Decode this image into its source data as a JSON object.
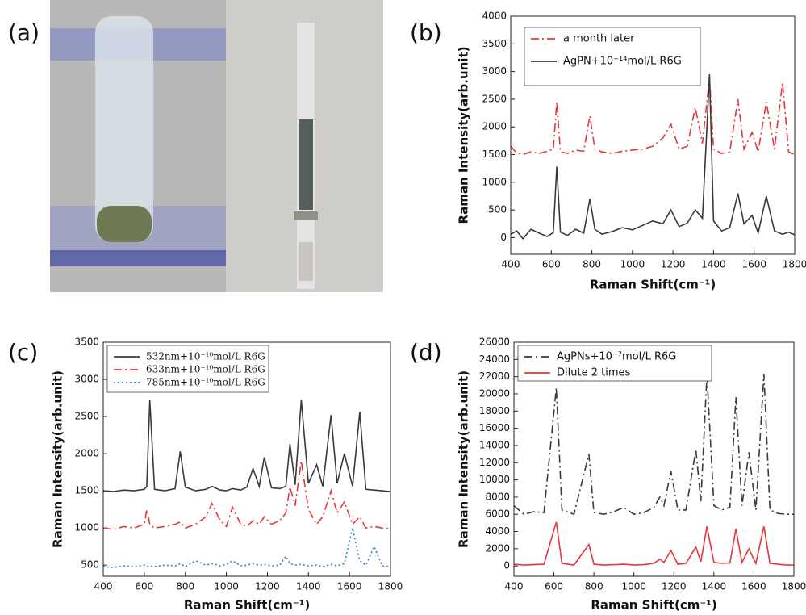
{
  "photo_panel": {
    "label": "(a)"
  },
  "chart_data": [
    {
      "type": "line",
      "label": "(b)",
      "legend": "upper left",
      "xlabel": "Raman Shift(cm⁻¹)",
      "ylabel": "Raman Intensity(arb.unit)",
      "xlim": [
        400,
        1800
      ],
      "xticks": [
        400,
        600,
        800,
        1000,
        1200,
        1400,
        1600,
        1800
      ],
      "ylim": [
        -300,
        4000
      ],
      "yticks": [
        0,
        500,
        1000,
        1500,
        2000,
        2500,
        3000,
        3500,
        4000
      ],
      "x": [
        400,
        430,
        460,
        500,
        540,
        580,
        610,
        627,
        645,
        680,
        720,
        760,
        790,
        815,
        850,
        900,
        950,
        1000,
        1050,
        1100,
        1150,
        1190,
        1230,
        1270,
        1310,
        1345,
        1380,
        1400,
        1440,
        1480,
        1520,
        1550,
        1590,
        1620,
        1660,
        1700,
        1740,
        1770,
        1800
      ],
      "series": [
        {
          "name": "a month later",
          "color": "#e8353a",
          "linestyle": "dashdot",
          "values": [
            1650,
            1530,
            1500,
            1550,
            1520,
            1560,
            1600,
            2450,
            1550,
            1520,
            1580,
            1560,
            2200,
            1600,
            1550,
            1520,
            1560,
            1580,
            1600,
            1650,
            1800,
            2050,
            1600,
            1650,
            2350,
            1700,
            2900,
            1600,
            1520,
            1550,
            2500,
            1600,
            1900,
            1550,
            2450,
            1600,
            2800,
            1550,
            1500
          ]
        },
        {
          "name": "AgPN+10⁻¹⁴mol/L R6G",
          "color": "#3a3a3a",
          "linestyle": "solid",
          "values": [
            60,
            120,
            -20,
            150,
            80,
            20,
            90,
            1280,
            100,
            40,
            150,
            80,
            700,
            150,
            60,
            110,
            180,
            140,
            220,
            300,
            250,
            500,
            200,
            260,
            500,
            350,
            2950,
            300,
            120,
            180,
            800,
            250,
            400,
            80,
            750,
            120,
            60,
            100,
            50
          ]
        }
      ]
    },
    {
      "type": "line",
      "label": "(c)",
      "legend": "upper left",
      "xlabel": "Raman Shift(cm⁻¹)",
      "ylabel": "Raman Intensity(arb.unit)",
      "xlim": [
        400,
        1800
      ],
      "xticks": [
        400,
        600,
        800,
        1000,
        1200,
        1400,
        1600,
        1800
      ],
      "ylim": [
        350,
        3500
      ],
      "yticks": [
        500,
        1000,
        1500,
        2000,
        2500,
        3000,
        3500
      ],
      "x": [
        400,
        450,
        500,
        550,
        600,
        612,
        627,
        650,
        700,
        750,
        775,
        800,
        850,
        900,
        930,
        970,
        1000,
        1030,
        1070,
        1100,
        1130,
        1160,
        1185,
        1220,
        1260,
        1290,
        1310,
        1335,
        1365,
        1400,
        1440,
        1470,
        1510,
        1540,
        1575,
        1615,
        1650,
        1680,
        1720,
        1760,
        1800
      ],
      "series": [
        {
          "name": "532nm+10⁻¹⁰mol/L R6G",
          "color": "#3a3a3a",
          "linestyle": "solid",
          "values": [
            1500,
            1490,
            1510,
            1500,
            1520,
            1560,
            2720,
            1520,
            1500,
            1530,
            2030,
            1550,
            1500,
            1520,
            1560,
            1510,
            1500,
            1530,
            1510,
            1550,
            1800,
            1560,
            1950,
            1540,
            1530,
            1560,
            2130,
            1580,
            2720,
            1600,
            1850,
            1560,
            2520,
            1600,
            2000,
            1560,
            2560,
            1520,
            1510,
            1500,
            1490
          ]
        },
        {
          "name": "633nm+10⁻¹⁰mol/L R6G",
          "color": "#e8353a",
          "linestyle": "dashdot",
          "values": [
            1000,
            980,
            1020,
            1000,
            1050,
            1250,
            1050,
            1000,
            1020,
            1050,
            1080,
            1000,
            1050,
            1150,
            1330,
            1100,
            1020,
            1280,
            1050,
            1020,
            1100,
            1050,
            1150,
            1050,
            1100,
            1200,
            1550,
            1300,
            1900,
            1250,
            1050,
            1150,
            1500,
            1200,
            1350,
            1050,
            1150,
            1000,
            1020,
            1000,
            990
          ]
        },
        {
          "name": "785nm+10⁻¹⁰mol/L R6G",
          "color": "#2f7fd6",
          "linestyle": "dotted",
          "values": [
            480,
            470,
            490,
            480,
            500,
            480,
            490,
            480,
            500,
            490,
            520,
            480,
            560,
            500,
            520,
            490,
            510,
            560,
            490,
            500,
            520,
            500,
            510,
            490,
            500,
            620,
            520,
            500,
            510,
            490,
            500,
            480,
            510,
            490,
            520,
            1000,
            560,
            500,
            750,
            490,
            480
          ]
        }
      ]
    },
    {
      "type": "line",
      "label": "(d)",
      "legend": "upper left",
      "xlabel": "Raman Shift(cm⁻¹)",
      "ylabel": "Raman Intensity(arb.unit)",
      "xlim": [
        400,
        1800
      ],
      "xticks": [
        400,
        600,
        800,
        1000,
        1200,
        1400,
        1600,
        1800
      ],
      "ylim": [
        -1200,
        26000
      ],
      "yticks": [
        0,
        2000,
        4000,
        6000,
        8000,
        10000,
        12000,
        14000,
        16000,
        18000,
        20000,
        22000,
        24000,
        26000
      ],
      "x": [
        400,
        450,
        500,
        550,
        612,
        640,
        700,
        775,
        800,
        850,
        900,
        950,
        1000,
        1050,
        1100,
        1130,
        1150,
        1185,
        1220,
        1260,
        1310,
        1335,
        1365,
        1400,
        1440,
        1480,
        1510,
        1540,
        1575,
        1610,
        1650,
        1680,
        1720,
        1760,
        1800
      ],
      "series": [
        {
          "name": "AgPNs+10⁻⁷mol/L R6G",
          "color": "#3a3a3a",
          "linestyle": "dashdot",
          "values": [
            7000,
            6000,
            6300,
            6200,
            20700,
            6500,
            6000,
            13000,
            6200,
            6000,
            6300,
            6800,
            6000,
            6200,
            6800,
            8000,
            7000,
            11000,
            6500,
            6500,
            13500,
            7500,
            22200,
            7000,
            6500,
            6800,
            19600,
            7000,
            13200,
            6500,
            22300,
            6500,
            6100,
            6000,
            6000
          ]
        },
        {
          "name": "Dilute 2 times",
          "color": "#e8353a",
          "linestyle": "solid",
          "values": [
            200,
            100,
            150,
            200,
            5100,
            300,
            100,
            2500,
            200,
            100,
            150,
            200,
            100,
            150,
            300,
            800,
            400,
            1800,
            200,
            300,
            2200,
            500,
            4600,
            400,
            300,
            350,
            4300,
            400,
            2000,
            300,
            4600,
            300,
            200,
            100,
            100
          ]
        }
      ]
    }
  ]
}
